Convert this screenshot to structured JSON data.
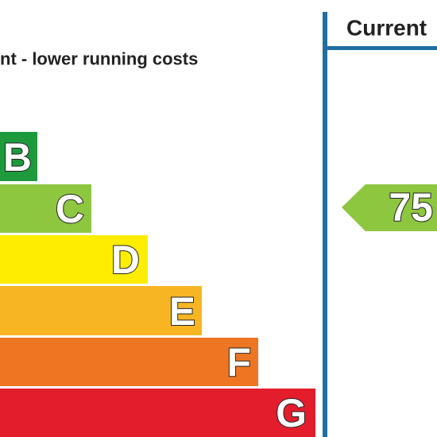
{
  "header": {
    "subtitle": "nt - lower running costs",
    "column": "Current"
  },
  "bands": [
    {
      "letter": "B"
    },
    {
      "letter": "C"
    },
    {
      "letter": "D"
    },
    {
      "letter": "E"
    },
    {
      "letter": "F"
    },
    {
      "letter": "G"
    }
  ],
  "current": {
    "rating": 75
  }
}
